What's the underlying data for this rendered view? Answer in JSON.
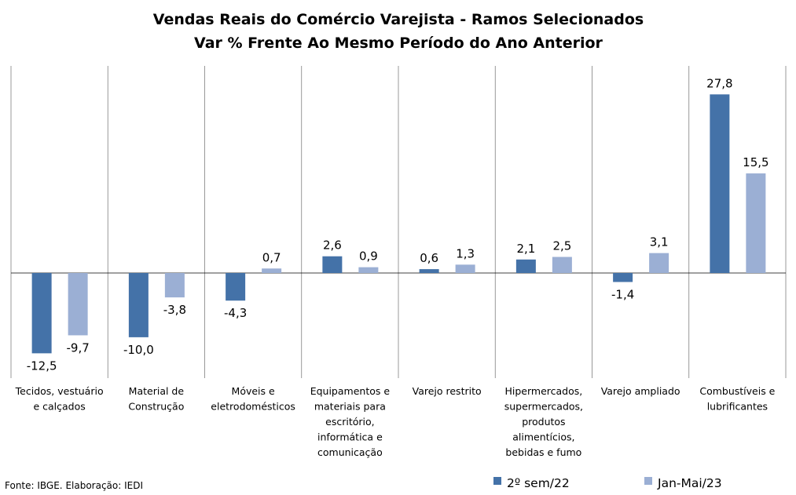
{
  "chart_data": {
    "type": "bar",
    "title": "Vendas Reais do Comércio Varejista -  Ramos Selecionados",
    "subtitle": "Var % Frente Ao Mesmo Período do Ano Anterior",
    "categories": [
      "Tecidos, vestuário e calçados",
      "Material de Construção",
      "Móveis e eletrodomésticos",
      "Equipamentos e materiais para escritório, informática e comunicação",
      "Varejo restrito",
      "Hipermercados, supermercados, produtos alimentícios, bebidas e fumo",
      "Varejo ampliado",
      "Combustíveis e lubrificantes"
    ],
    "category_lines": [
      [
        "Tecidos, vestuário",
        "e calçados"
      ],
      [
        "Material de",
        "Construção"
      ],
      [
        "Móveis e",
        "eletrodomésticos"
      ],
      [
        "Equipamentos e",
        "materiais para",
        "escritório,",
        "informática e",
        "comunicação"
      ],
      [
        "Varejo restrito"
      ],
      [
        "Hipermercados,",
        "supermercados,",
        "produtos",
        "alimentícios,",
        "bebidas e fumo"
      ],
      [
        "Varejo ampliado"
      ],
      [
        "Combustíveis e",
        "lubrificantes"
      ]
    ],
    "series": [
      {
        "name": "2º sem/22",
        "color": "#4472a8",
        "values": [
          -12.5,
          -10.0,
          -4.3,
          2.6,
          0.6,
          2.1,
          -1.4,
          27.8
        ],
        "labels": [
          "-12,5",
          "-10,0",
          "-4,3",
          "2,6",
          "0,6",
          "2,1",
          "-1,4",
          "27,8"
        ]
      },
      {
        "name": "Jan-Mai/23",
        "color": "#9bafd4",
        "values": [
          -9.7,
          -3.8,
          0.7,
          0.9,
          1.3,
          2.5,
          3.1,
          15.5
        ],
        "labels": [
          "-9,7",
          "-3,8",
          "0,7",
          "0,9",
          "1,3",
          "2,5",
          "3,1",
          "15,5"
        ]
      }
    ],
    "legend_position": "bottom-right",
    "grid": false
  },
  "source_note": "Fonte: IBGE. Elaboração: IEDI"
}
